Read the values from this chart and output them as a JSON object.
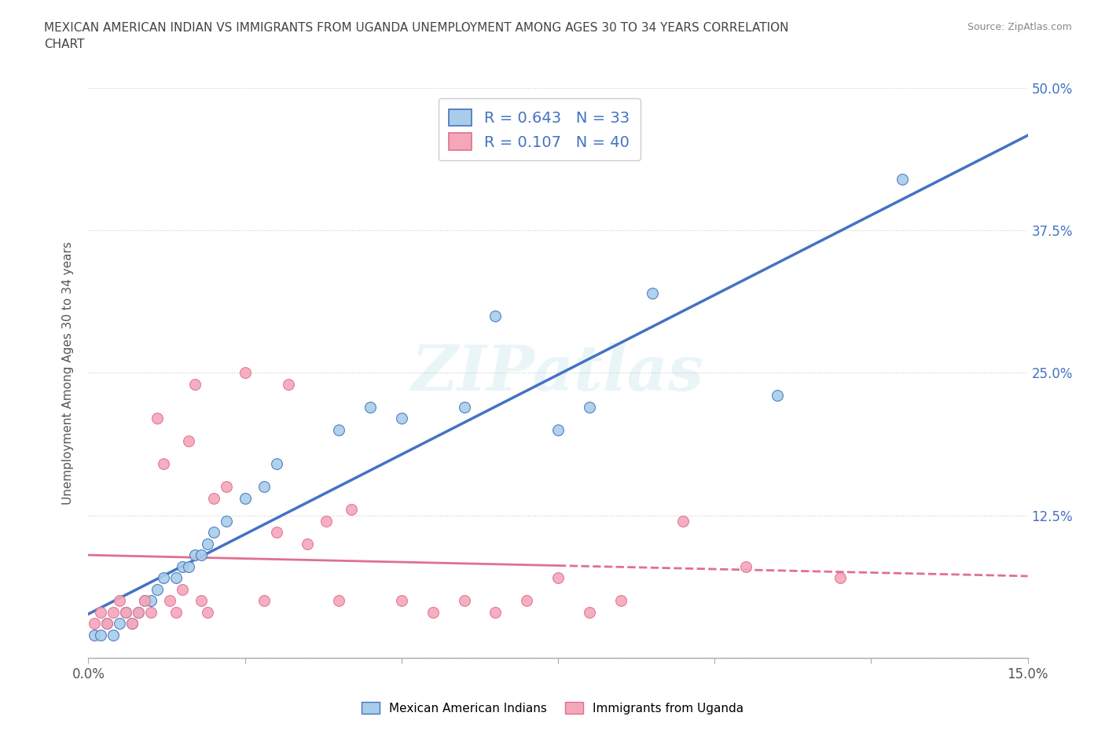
{
  "title": "MEXICAN AMERICAN INDIAN VS IMMIGRANTS FROM UGANDA UNEMPLOYMENT AMONG AGES 30 TO 34 YEARS CORRELATION\nCHART",
  "source": "Source: ZipAtlas.com",
  "ylabel": "Unemployment Among Ages 30 to 34 years",
  "xlim": [
    0.0,
    0.15
  ],
  "ylim": [
    0.0,
    0.5
  ],
  "xticks": [
    0.0,
    0.025,
    0.05,
    0.075,
    0.1,
    0.125,
    0.15
  ],
  "xticklabels": [
    "0.0%",
    "",
    "",
    "",
    "",
    "",
    "15.0%"
  ],
  "yticks": [
    0.0,
    0.125,
    0.25,
    0.375,
    0.5
  ],
  "yticklabels": [
    "",
    "12.5%",
    "25.0%",
    "37.5%",
    "50.0%"
  ],
  "blue_color": "#a8cde8",
  "pink_color": "#f4a7b9",
  "blue_line_color": "#4472c4",
  "pink_line_color": "#e07090",
  "R_blue": 0.643,
  "N_blue": 33,
  "R_pink": 0.107,
  "N_pink": 40,
  "watermark": "ZIPatlas",
  "legend_label_blue": "Mexican American Indians",
  "legend_label_pink": "Immigrants from Uganda",
  "blue_scatter_x": [
    0.001,
    0.002,
    0.003,
    0.004,
    0.005,
    0.006,
    0.007,
    0.008,
    0.009,
    0.01,
    0.011,
    0.012,
    0.014,
    0.015,
    0.016,
    0.017,
    0.018,
    0.019,
    0.02,
    0.022,
    0.025,
    0.028,
    0.03,
    0.04,
    0.045,
    0.05,
    0.06,
    0.065,
    0.075,
    0.08,
    0.09,
    0.11,
    0.13
  ],
  "blue_scatter_y": [
    0.02,
    0.02,
    0.03,
    0.02,
    0.03,
    0.04,
    0.03,
    0.04,
    0.05,
    0.05,
    0.06,
    0.07,
    0.07,
    0.08,
    0.08,
    0.09,
    0.09,
    0.1,
    0.11,
    0.12,
    0.14,
    0.15,
    0.17,
    0.2,
    0.22,
    0.21,
    0.22,
    0.3,
    0.2,
    0.22,
    0.32,
    0.23,
    0.42
  ],
  "pink_scatter_x": [
    0.001,
    0.002,
    0.003,
    0.004,
    0.005,
    0.006,
    0.007,
    0.008,
    0.009,
    0.01,
    0.011,
    0.012,
    0.013,
    0.014,
    0.015,
    0.016,
    0.017,
    0.018,
    0.019,
    0.02,
    0.022,
    0.025,
    0.028,
    0.03,
    0.032,
    0.035,
    0.038,
    0.04,
    0.042,
    0.05,
    0.055,
    0.06,
    0.065,
    0.07,
    0.075,
    0.08,
    0.085,
    0.095,
    0.105,
    0.12
  ],
  "pink_scatter_y": [
    0.03,
    0.04,
    0.03,
    0.04,
    0.05,
    0.04,
    0.03,
    0.04,
    0.05,
    0.04,
    0.21,
    0.17,
    0.05,
    0.04,
    0.06,
    0.19,
    0.24,
    0.05,
    0.04,
    0.14,
    0.15,
    0.25,
    0.05,
    0.11,
    0.24,
    0.1,
    0.12,
    0.05,
    0.13,
    0.05,
    0.04,
    0.05,
    0.04,
    0.05,
    0.07,
    0.04,
    0.05,
    0.12,
    0.08,
    0.07
  ]
}
